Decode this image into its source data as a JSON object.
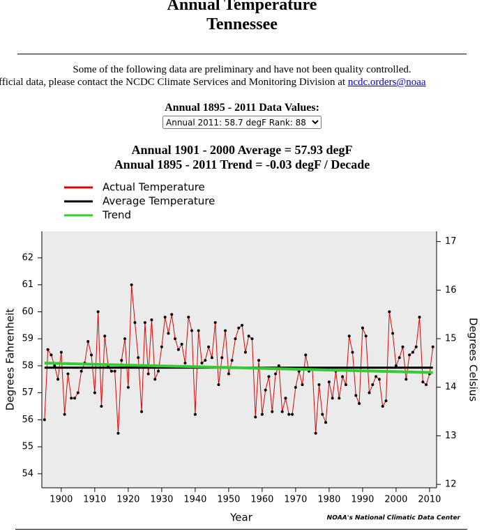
{
  "header": {
    "title": "Annual Temperature",
    "subtitle": "Tennessee",
    "notice_1": "Some of the following data are preliminary and have not been quality controlled.",
    "notice_2": "fficial data, please contact the NCDC Climate Services and Monitoring Division at",
    "link": "ncdc.orders@noaa",
    "select_label": "Annual 1895 - 2011 Data Values:",
    "select_option": "Annual 2011: 58.7 degF  Rank: 88",
    "average_text": "Annual 1901 - 2000 Average = 57.93 degF",
    "trend_text": "Annual 1895 - 2011 Trend = -0.03 degF / Decade"
  },
  "chart_data": {
    "type": "line",
    "x_label": "Year",
    "y_label": "Degrees Fahrenheit",
    "y2_label": "Degrees Celsius",
    "credit": "NOAA's National Climatic Data Center",
    "x": [
      1895,
      1896,
      1897,
      1898,
      1899,
      1900,
      1901,
      1902,
      1903,
      1904,
      1905,
      1906,
      1907,
      1908,
      1909,
      1910,
      1911,
      1912,
      1913,
      1914,
      1915,
      1916,
      1917,
      1918,
      1919,
      1920,
      1921,
      1922,
      1923,
      1924,
      1925,
      1926,
      1927,
      1928,
      1929,
      1930,
      1931,
      1932,
      1933,
      1934,
      1935,
      1936,
      1937,
      1938,
      1939,
      1940,
      1941,
      1942,
      1943,
      1944,
      1945,
      1946,
      1947,
      1948,
      1949,
      1950,
      1951,
      1952,
      1953,
      1954,
      1955,
      1956,
      1957,
      1958,
      1959,
      1960,
      1961,
      1962,
      1963,
      1964,
      1965,
      1966,
      1967,
      1968,
      1969,
      1970,
      1971,
      1972,
      1973,
      1974,
      1975,
      1976,
      1977,
      1978,
      1979,
      1980,
      1981,
      1982,
      1983,
      1984,
      1985,
      1986,
      1987,
      1988,
      1989,
      1990,
      1991,
      1992,
      1993,
      1994,
      1995,
      1996,
      1997,
      1998,
      1999,
      2000,
      2001,
      2002,
      2003,
      2004,
      2005,
      2006,
      2007,
      2008,
      2009,
      2010,
      2011
    ],
    "series": [
      {
        "name": "Actual Temperature",
        "color": "#e00000",
        "width": 1,
        "markers": true,
        "values": [
          56.0,
          58.6,
          58.4,
          58.0,
          57.5,
          58.5,
          56.2,
          57.7,
          56.8,
          56.8,
          57.0,
          57.8,
          58.1,
          58.9,
          58.4,
          57.0,
          60.0,
          56.5,
          59.1,
          58.0,
          57.8,
          57.8,
          55.5,
          58.2,
          59.0,
          57.2,
          61.0,
          59.6,
          58.3,
          56.3,
          59.6,
          57.7,
          59.7,
          57.5,
          57.8,
          58.7,
          59.8,
          59.2,
          59.9,
          59.0,
          58.6,
          58.8,
          58.1,
          59.8,
          59.3,
          56.2,
          59.3,
          58.1,
          58.2,
          58.7,
          58.3,
          59.6,
          57.3,
          58.3,
          59.3,
          57.7,
          58.2,
          59.0,
          59.4,
          59.5,
          58.5,
          59.1,
          59.0,
          56.1,
          58.2,
          56.2,
          57.1,
          57.6,
          56.3,
          57.7,
          58.0,
          56.3,
          56.8,
          56.2,
          56.2,
          57.2,
          57.8,
          57.3,
          58.4,
          57.8,
          57.9,
          55.5,
          57.3,
          56.2,
          55.9,
          57.4,
          56.8,
          57.8,
          56.8,
          57.6,
          57.3,
          59.1,
          58.5,
          56.9,
          56.6,
          59.4,
          59.1,
          57.0,
          57.3,
          57.6,
          57.5,
          56.5,
          56.7,
          60.0,
          59.2,
          58.0,
          58.3,
          58.7,
          57.5,
          58.4,
          58.5,
          58.7,
          59.8,
          57.4,
          57.3,
          57.7,
          58.7
        ]
      },
      {
        "name": "Average Temperature",
        "color": "#000000",
        "width": 3,
        "x": [
          1895,
          2011
        ],
        "values": [
          57.93,
          57.93
        ]
      },
      {
        "name": "Trend",
        "color": "#33cc33",
        "width": 4,
        "x": [
          1895,
          2011
        ],
        "values": [
          58.1,
          57.75
        ]
      }
    ],
    "xlim": [
      1894.2,
      2012.1
    ],
    "xticks": [
      1900,
      1910,
      1920,
      1930,
      1940,
      1950,
      1960,
      1970,
      1980,
      1990,
      2000,
      2010
    ],
    "ylim": [
      53.48,
      62.98
    ],
    "yticks": [
      54,
      55,
      56,
      57,
      58,
      59,
      60,
      61,
      62
    ],
    "y2lim": [
      11.93,
      17.21
    ],
    "y2ticks": [
      12,
      13,
      14,
      15,
      16,
      17
    ],
    "background": "#ebebeb"
  }
}
